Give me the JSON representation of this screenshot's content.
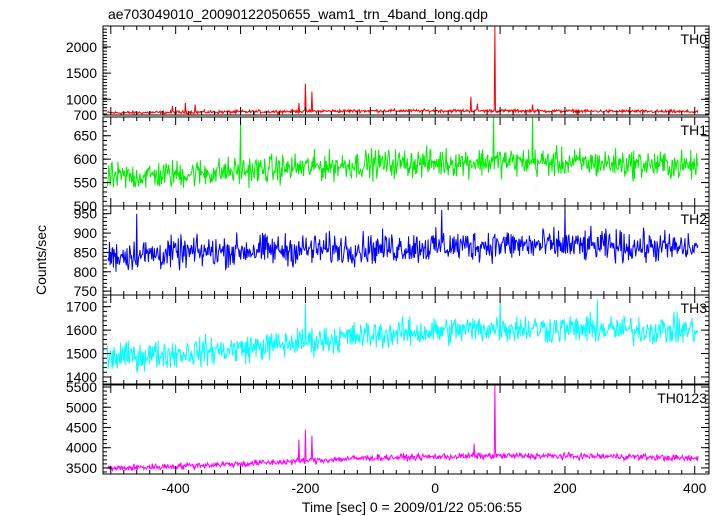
{
  "title": "ae703049010_20090122050655_wam1_trn_4band_long.qdp",
  "chart_data": {
    "type": "line",
    "title": "ae703049010_20090122050655_wam1_trn_4band_long.qdp",
    "xlabel": "Time [sec] 0 = 2009/01/22 05:06:55",
    "ylabel": "Counts/sec",
    "xlim": [
      -512,
      422
    ],
    "xticks": [
      -400,
      -200,
      0,
      200,
      400
    ],
    "grid": false,
    "series": [
      {
        "name": "TH0",
        "color": "#ff0000",
        "ylim": [
          700,
          2400
        ],
        "yticks": [
          700,
          1000,
          1500,
          2000
        ],
        "baseline": [
          [
            -512,
            740
          ],
          [
            -300,
            760
          ],
          [
            -100,
            780
          ],
          [
            100,
            780
          ],
          [
            300,
            770
          ],
          [
            420,
            760
          ]
        ],
        "noise": 45,
        "spikes": [
          [
            -405,
            870
          ],
          [
            -385,
            930
          ],
          [
            -370,
            900
          ],
          [
            -210,
            930
          ],
          [
            -200,
            1300
          ],
          [
            -190,
            1150
          ],
          [
            55,
            1050
          ],
          [
            65,
            920
          ],
          [
            92,
            2400
          ],
          [
            150,
            900
          ]
        ]
      },
      {
        "name": "TH1",
        "color": "#00ee00",
        "ylim": [
          500,
          690
        ],
        "yticks": [
          500,
          550,
          600,
          650
        ],
        "baseline": [
          [
            -512,
            560
          ],
          [
            -300,
            575
          ],
          [
            -100,
            590
          ],
          [
            100,
            595
          ],
          [
            300,
            590
          ],
          [
            420,
            585
          ]
        ],
        "noise": 45,
        "spikes": [
          [
            -300,
            680
          ],
          [
            90,
            690
          ],
          [
            150,
            690
          ]
        ]
      },
      {
        "name": "TH2",
        "color": "#0000ff",
        "ylim": [
          740,
          970
        ],
        "yticks": [
          750,
          800,
          850,
          900,
          950
        ],
        "baseline": [
          [
            -512,
            840
          ],
          [
            -300,
            855
          ],
          [
            -100,
            860
          ],
          [
            100,
            870
          ],
          [
            300,
            865
          ],
          [
            420,
            860
          ]
        ],
        "noise": 60,
        "spikes": [
          [
            -460,
            950
          ],
          [
            10,
            960
          ],
          [
            200,
            960
          ]
        ]
      },
      {
        "name": "TH3",
        "color": "#00ffff",
        "ylim": [
          1370,
          1750
        ],
        "yticks": [
          1400,
          1500,
          1600,
          1700
        ],
        "baseline": [
          [
            -512,
            1480
          ],
          [
            -300,
            1520
          ],
          [
            -100,
            1580
          ],
          [
            100,
            1610
          ],
          [
            300,
            1600
          ],
          [
            420,
            1600
          ]
        ],
        "noise": 90,
        "spikes": [
          [
            -200,
            1710
          ],
          [
            100,
            1740
          ],
          [
            250,
            1730
          ]
        ]
      },
      {
        "name": "TH0123",
        "color": "#ff00ff",
        "ylim": [
          3350,
          5550
        ],
        "yticks": [
          3500,
          4000,
          4500,
          5000,
          5500
        ],
        "baseline": [
          [
            -512,
            3480
          ],
          [
            -300,
            3600
          ],
          [
            -100,
            3750
          ],
          [
            100,
            3800
          ],
          [
            300,
            3780
          ],
          [
            420,
            3720
          ]
        ],
        "noise": 120,
        "spikes": [
          [
            -210,
            4200
          ],
          [
            -200,
            4450
          ],
          [
            -190,
            4300
          ],
          [
            60,
            4100
          ],
          [
            92,
            5550
          ]
        ]
      }
    ]
  }
}
